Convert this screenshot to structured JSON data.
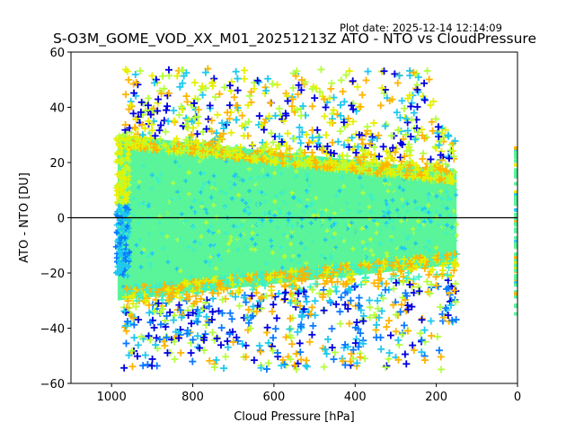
{
  "plot_date": "Plot date: 2025-12-14 12:14:09",
  "chart_data": {
    "type": "scatter",
    "title": "S-O3M_GOME_VOD_XX_M01_20251213Z ATO - NTO vs CloudPressure",
    "xlabel": "Cloud Pressure [hPa]",
    "ylabel": "ATO - NTO [DU]",
    "xlim": [
      1100,
      0
    ],
    "ylim": [
      -60,
      60
    ],
    "x_inverted": true,
    "xticks": [
      1000,
      800,
      600,
      400,
      200,
      0
    ],
    "xtick_labels": [
      "1000",
      "800",
      "600",
      "400",
      "200",
      "0"
    ],
    "yticks": [
      -60,
      -40,
      -20,
      0,
      20,
      40,
      60
    ],
    "ytick_labels": [
      "−60",
      "−40",
      "−20",
      "0",
      "20",
      "40",
      "60"
    ],
    "grid": false,
    "legend": "none",
    "marker": "+",
    "reference_line": {
      "y": 0,
      "color": "#000000"
    },
    "color_palette": [
      "#0000e0",
      "#0a78ff",
      "#1ec8f0",
      "#3cf0c8",
      "#5af59a",
      "#b4ff3c",
      "#e6f000",
      "#ffb400"
    ],
    "dense_core": {
      "x_range": [
        985,
        150
      ],
      "y_center": 2,
      "y_halfwidth_at_1000": 28,
      "y_halfwidth_at_150": 15,
      "dominant_color": "#5af59a"
    },
    "outlier_envelope": {
      "upper_max": 58,
      "lower_min": -59,
      "upper_edge_colors": [
        "#e6f000",
        "#ffb400",
        "#b4ff3c",
        "#0000e0",
        "#1ec8f0"
      ],
      "lower_edge_colors": [
        "#0000e0",
        "#0a78ff",
        "#1ec8f0",
        "#ffb400",
        "#b4ff3c"
      ]
    },
    "sparse_column": {
      "x": 0,
      "y_range": [
        -35,
        27
      ]
    }
  }
}
